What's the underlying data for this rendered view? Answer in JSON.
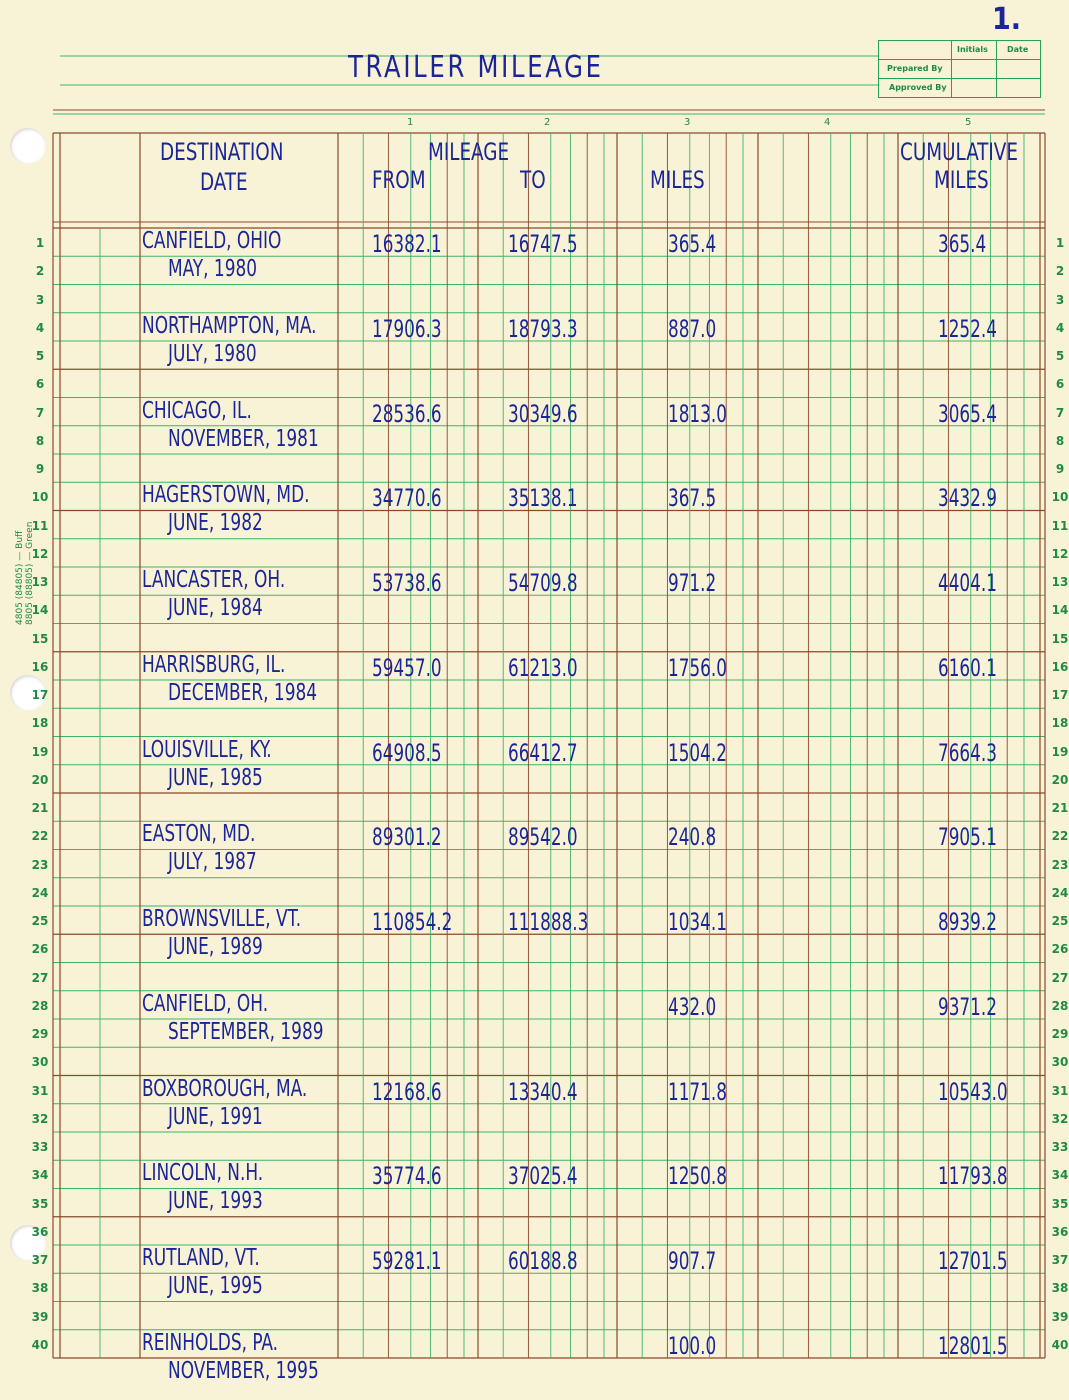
{
  "page_number": "1.",
  "title": "TRAILER MILEAGE",
  "signoff": {
    "col_initials": "Initials",
    "col_date": "Date",
    "prepared_by": "Prepared By",
    "approved_by": "Approved By"
  },
  "margin_text": [
    "4805 (84805) — Buff",
    "8805 (88805) — Green"
  ],
  "column_numbers": [
    "1",
    "2",
    "3",
    "4",
    "5"
  ],
  "headers": {
    "destination": "DESTINATION",
    "date": "DATE",
    "mileage": "MILEAGE",
    "from": "FROM",
    "to": "TO",
    "miles": "MILES",
    "cumulative1": "CUMULATIVE",
    "cumulative2": "MILES"
  },
  "entries": [
    {
      "destination": "CANFIELD, OHIO",
      "date": "MAY, 1980",
      "from": "16382.1",
      "to": "16747.5",
      "miles": "365.4",
      "cumulative": "365.4"
    },
    {
      "destination": "NORTHAMPTON, MA.",
      "date": "JULY, 1980",
      "from": "17906.3",
      "to": "18793.3",
      "miles": "887.0",
      "cumulative": "1252.4"
    },
    {
      "destination": "CHICAGO, IL.",
      "date": "NOVEMBER, 1981",
      "from": "28536.6",
      "to": "30349.6",
      "miles": "1813.0",
      "cumulative": "3065.4"
    },
    {
      "destination": "HAGERSTOWN, MD.",
      "date": "JUNE, 1982",
      "from": "34770.6",
      "to": "35138.1",
      "miles": "367.5",
      "cumulative": "3432.9"
    },
    {
      "destination": "LANCASTER, OH.",
      "date": "JUNE, 1984",
      "from": "53738.6",
      "to": "54709.8",
      "miles": "971.2",
      "cumulative": "4404.1"
    },
    {
      "destination": "HARRISBURG, IL.",
      "date": "DECEMBER, 1984",
      "from": "59457.0",
      "to": "61213.0",
      "miles": "1756.0",
      "cumulative": "6160.1"
    },
    {
      "destination": "LOUISVILLE, KY.",
      "date": "JUNE, 1985",
      "from": "64908.5",
      "to": "66412.7",
      "miles": "1504.2",
      "cumulative": "7664.3"
    },
    {
      "destination": "EASTON, MD.",
      "date": "JULY, 1987",
      "from": "89301.2",
      "to": "89542.0",
      "miles": "240.8",
      "cumulative": "7905.1"
    },
    {
      "destination": "BROWNSVILLE, VT.",
      "date": "JUNE, 1989",
      "from": "110854.2",
      "to": "111888.3",
      "miles": "1034.1",
      "cumulative": "8939.2"
    },
    {
      "destination": "CANFIELD, OH.",
      "date": "SEPTEMBER, 1989",
      "from": "",
      "to": "",
      "miles": "432.0",
      "cumulative": "9371.2"
    },
    {
      "destination": "BOXBOROUGH, MA.",
      "date": "JUNE, 1991",
      "from": "12168.6",
      "to": "13340.4",
      "miles": "1171.8",
      "cumulative": "10543.0"
    },
    {
      "destination": "LINCOLN, N.H.",
      "date": "JUNE, 1993",
      "from": "35774.6",
      "to": "37025.4",
      "miles": "1250.8",
      "cumulative": "11793.8"
    },
    {
      "destination": "RUTLAND, VT.",
      "date": "JUNE, 1995",
      "from": "59281.1",
      "to": "60188.8",
      "miles": "907.7",
      "cumulative": "12701.5"
    },
    {
      "destination": "REINHOLDS, PA.",
      "date": "NOVEMBER, 1995",
      "from": "",
      "to": "",
      "miles": "100.0",
      "cumulative": "12801.5"
    }
  ],
  "row_count": 40,
  "colors": {
    "paper": "#f8f3d6",
    "green_rule": "#3cb46a",
    "brown_rule": "#8a4a2a",
    "ink": "#1b2596"
  }
}
